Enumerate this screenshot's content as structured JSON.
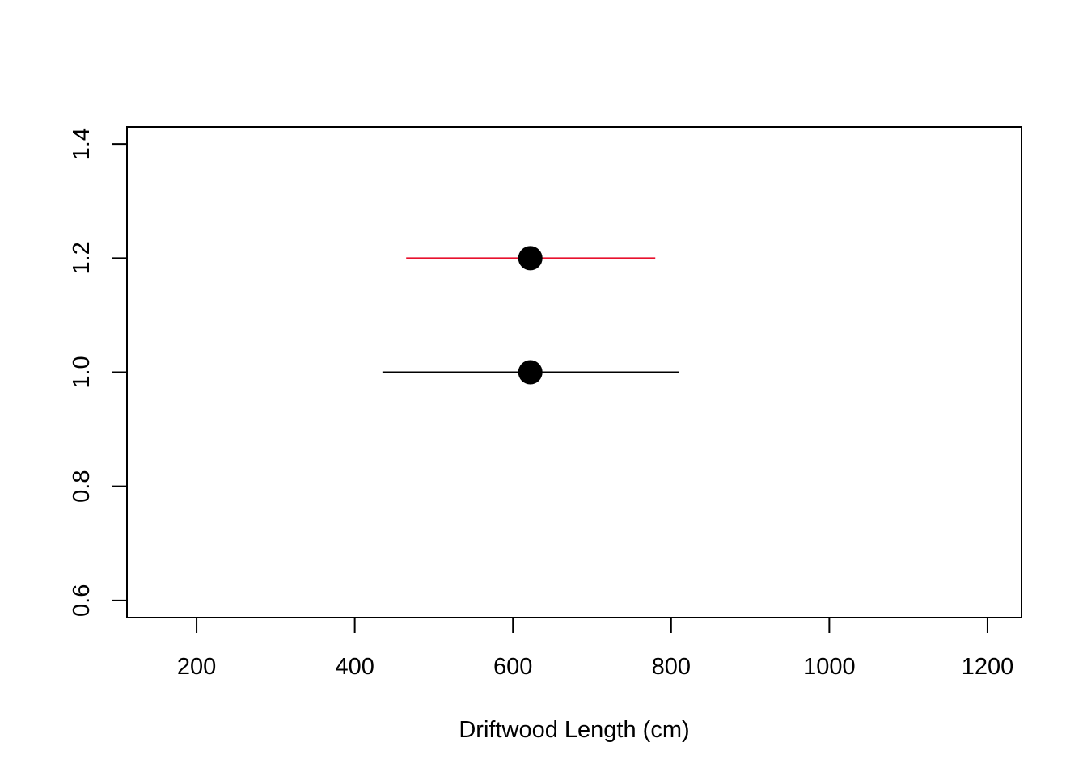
{
  "chart_data": {
    "type": "scatter",
    "title": "",
    "xlabel": "Driftwood Length (cm)",
    "ylabel": "",
    "xlim": [
      112,
      1243
    ],
    "ylim": [
      0.57,
      1.43
    ],
    "x_ticks": [
      200,
      400,
      600,
      800,
      1000,
      1200
    ],
    "y_ticks": [
      0.6,
      0.8,
      1.0,
      1.2,
      1.4
    ],
    "x_tick_labels": [
      "200",
      "400",
      "600",
      "800",
      "1000",
      "1200"
    ],
    "y_tick_labels": [
      "0.6",
      "0.8",
      "1.0",
      "1.2",
      "1.4"
    ],
    "grid": false,
    "legend": "none",
    "series": [
      {
        "x": 622,
        "y": 1.0,
        "lower": 435,
        "upper": 810,
        "color": "#000000"
      },
      {
        "x": 622,
        "y": 1.2,
        "lower": 465,
        "upper": 780,
        "color": "#e8112d"
      }
    ],
    "point_color": "#000000"
  }
}
